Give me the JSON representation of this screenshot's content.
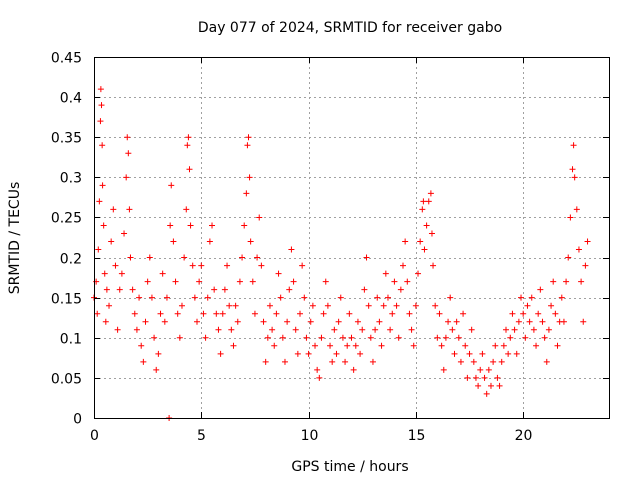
{
  "chart_data": {
    "type": "scatter",
    "title": "Day 077 of 2024, SRMTID for receiver gabo",
    "xlabel": "GPS time / hours",
    "ylabel": "SRMTID / TECUs",
    "xlim": [
      0,
      24
    ],
    "ylim": [
      0,
      0.45
    ],
    "xticks": [
      0,
      5,
      10,
      15,
      20
    ],
    "xtick_labels": [
      "0",
      "5",
      "10",
      "15",
      "20"
    ],
    "yticks": [
      0,
      0.05,
      0.1,
      0.15,
      0.2,
      0.25,
      0.3,
      0.35,
      0.4,
      0.45
    ],
    "ytick_labels": [
      "0",
      "0.05",
      "0.1",
      "0.15",
      "0.2",
      "0.25",
      "0.3",
      "0.35",
      "0.4",
      "0.45"
    ],
    "grid": true,
    "marker": "+",
    "color": "#ff0000",
    "series": [
      {
        "name": "SRMTID",
        "points": [
          [
            0.0,
            0.15
          ],
          [
            0.1,
            0.17
          ],
          [
            0.15,
            0.13
          ],
          [
            0.2,
            0.21
          ],
          [
            0.25,
            0.27
          ],
          [
            0.3,
            0.37
          ],
          [
            0.32,
            0.41
          ],
          [
            0.35,
            0.39
          ],
          [
            0.38,
            0.34
          ],
          [
            0.4,
            0.29
          ],
          [
            0.45,
            0.24
          ],
          [
            0.5,
            0.18
          ],
          [
            0.55,
            0.12
          ],
          [
            0.6,
            0.16
          ],
          [
            0.7,
            0.14
          ],
          [
            0.8,
            0.22
          ],
          [
            0.9,
            0.26
          ],
          [
            1.0,
            0.19
          ],
          [
            1.1,
            0.11
          ],
          [
            1.2,
            0.16
          ],
          [
            1.3,
            0.18
          ],
          [
            1.4,
            0.23
          ],
          [
            1.5,
            0.3
          ],
          [
            1.55,
            0.35
          ],
          [
            1.6,
            0.33
          ],
          [
            1.65,
            0.26
          ],
          [
            1.7,
            0.2
          ],
          [
            1.8,
            0.16
          ],
          [
            1.9,
            0.13
          ],
          [
            2.0,
            0.11
          ],
          [
            2.1,
            0.15
          ],
          [
            2.2,
            0.09
          ],
          [
            2.3,
            0.07
          ],
          [
            2.4,
            0.12
          ],
          [
            2.5,
            0.17
          ],
          [
            2.6,
            0.2
          ],
          [
            2.7,
            0.15
          ],
          [
            2.8,
            0.1
          ],
          [
            2.9,
            0.06
          ],
          [
            3.0,
            0.08
          ],
          [
            3.1,
            0.13
          ],
          [
            3.2,
            0.18
          ],
          [
            3.3,
            0.12
          ],
          [
            3.4,
            0.15
          ],
          [
            3.5,
            0.0
          ],
          [
            3.55,
            0.24
          ],
          [
            3.6,
            0.29
          ],
          [
            3.7,
            0.22
          ],
          [
            3.8,
            0.17
          ],
          [
            3.9,
            0.13
          ],
          [
            4.0,
            0.1
          ],
          [
            4.1,
            0.14
          ],
          [
            4.2,
            0.2
          ],
          [
            4.3,
            0.26
          ],
          [
            4.35,
            0.34
          ],
          [
            4.4,
            0.35
          ],
          [
            4.45,
            0.31
          ],
          [
            4.5,
            0.24
          ],
          [
            4.6,
            0.19
          ],
          [
            4.7,
            0.15
          ],
          [
            4.8,
            0.12
          ],
          [
            4.9,
            0.17
          ],
          [
            5.0,
            0.19
          ],
          [
            5.1,
            0.13
          ],
          [
            5.2,
            0.1
          ],
          [
            5.3,
            0.15
          ],
          [
            5.4,
            0.22
          ],
          [
            5.5,
            0.24
          ],
          [
            5.6,
            0.16
          ],
          [
            5.7,
            0.13
          ],
          [
            5.8,
            0.11
          ],
          [
            5.9,
            0.08
          ],
          [
            6.0,
            0.13
          ],
          [
            6.1,
            0.16
          ],
          [
            6.2,
            0.19
          ],
          [
            6.3,
            0.14
          ],
          [
            6.4,
            0.11
          ],
          [
            6.5,
            0.09
          ],
          [
            6.6,
            0.14
          ],
          [
            6.7,
            0.12
          ],
          [
            6.8,
            0.17
          ],
          [
            6.9,
            0.2
          ],
          [
            7.0,
            0.24
          ],
          [
            7.1,
            0.28
          ],
          [
            7.15,
            0.34
          ],
          [
            7.2,
            0.35
          ],
          [
            7.25,
            0.3
          ],
          [
            7.3,
            0.22
          ],
          [
            7.4,
            0.17
          ],
          [
            7.5,
            0.13
          ],
          [
            7.6,
            0.2
          ],
          [
            7.7,
            0.25
          ],
          [
            7.8,
            0.19
          ],
          [
            7.9,
            0.12
          ],
          [
            8.0,
            0.07
          ],
          [
            8.1,
            0.1
          ],
          [
            8.2,
            0.14
          ],
          [
            8.3,
            0.11
          ],
          [
            8.4,
            0.09
          ],
          [
            8.5,
            0.13
          ],
          [
            8.6,
            0.18
          ],
          [
            8.7,
            0.15
          ],
          [
            8.8,
            0.1
          ],
          [
            8.9,
            0.07
          ],
          [
            9.0,
            0.12
          ],
          [
            9.1,
            0.16
          ],
          [
            9.2,
            0.21
          ],
          [
            9.3,
            0.17
          ],
          [
            9.4,
            0.11
          ],
          [
            9.5,
            0.08
          ],
          [
            9.6,
            0.13
          ],
          [
            9.7,
            0.19
          ],
          [
            9.8,
            0.15
          ],
          [
            9.9,
            0.1
          ],
          [
            10.0,
            0.08
          ],
          [
            10.1,
            0.12
          ],
          [
            10.2,
            0.14
          ],
          [
            10.3,
            0.09
          ],
          [
            10.4,
            0.06
          ],
          [
            10.5,
            0.05
          ],
          [
            10.6,
            0.1
          ],
          [
            10.7,
            0.13
          ],
          [
            10.8,
            0.17
          ],
          [
            10.9,
            0.14
          ],
          [
            11.0,
            0.09
          ],
          [
            11.1,
            0.07
          ],
          [
            11.2,
            0.11
          ],
          [
            11.3,
            0.08
          ],
          [
            11.4,
            0.12
          ],
          [
            11.5,
            0.15
          ],
          [
            11.6,
            0.1
          ],
          [
            11.7,
            0.07
          ],
          [
            11.8,
            0.09
          ],
          [
            11.9,
            0.13
          ],
          [
            12.0,
            0.1
          ],
          [
            12.1,
            0.06
          ],
          [
            12.2,
            0.09
          ],
          [
            12.3,
            0.12
          ],
          [
            12.4,
            0.08
          ],
          [
            12.5,
            0.11
          ],
          [
            12.6,
            0.16
          ],
          [
            12.7,
            0.2
          ],
          [
            12.8,
            0.14
          ],
          [
            12.9,
            0.1
          ],
          [
            13.0,
            0.07
          ],
          [
            13.1,
            0.11
          ],
          [
            13.2,
            0.15
          ],
          [
            13.3,
            0.12
          ],
          [
            13.4,
            0.09
          ],
          [
            13.5,
            0.14
          ],
          [
            13.6,
            0.18
          ],
          [
            13.7,
            0.15
          ],
          [
            13.8,
            0.11
          ],
          [
            13.9,
            0.13
          ],
          [
            14.0,
            0.17
          ],
          [
            14.1,
            0.14
          ],
          [
            14.2,
            0.1
          ],
          [
            14.3,
            0.16
          ],
          [
            14.4,
            0.19
          ],
          [
            14.5,
            0.22
          ],
          [
            14.6,
            0.17
          ],
          [
            14.7,
            0.13
          ],
          [
            14.8,
            0.11
          ],
          [
            14.9,
            0.09
          ],
          [
            15.0,
            0.14
          ],
          [
            15.1,
            0.18
          ],
          [
            15.2,
            0.22
          ],
          [
            15.3,
            0.26
          ],
          [
            15.35,
            0.27
          ],
          [
            15.4,
            0.21
          ],
          [
            15.5,
            0.24
          ],
          [
            15.6,
            0.27
          ],
          [
            15.7,
            0.28
          ],
          [
            15.75,
            0.23
          ],
          [
            15.8,
            0.19
          ],
          [
            15.9,
            0.14
          ],
          [
            16.0,
            0.1
          ],
          [
            16.1,
            0.13
          ],
          [
            16.2,
            0.09
          ],
          [
            16.3,
            0.06
          ],
          [
            16.4,
            0.1
          ],
          [
            16.5,
            0.12
          ],
          [
            16.6,
            0.15
          ],
          [
            16.7,
            0.11
          ],
          [
            16.8,
            0.08
          ],
          [
            16.9,
            0.12
          ],
          [
            17.0,
            0.1
          ],
          [
            17.1,
            0.07
          ],
          [
            17.2,
            0.13
          ],
          [
            17.3,
            0.09
          ],
          [
            17.4,
            0.05
          ],
          [
            17.5,
            0.08
          ],
          [
            17.6,
            0.11
          ],
          [
            17.7,
            0.07
          ],
          [
            17.8,
            0.05
          ],
          [
            17.9,
            0.04
          ],
          [
            18.0,
            0.06
          ],
          [
            18.1,
            0.08
          ],
          [
            18.2,
            0.05
          ],
          [
            18.3,
            0.03
          ],
          [
            18.4,
            0.06
          ],
          [
            18.5,
            0.04
          ],
          [
            18.6,
            0.07
          ],
          [
            18.7,
            0.09
          ],
          [
            18.8,
            0.05
          ],
          [
            18.9,
            0.04
          ],
          [
            19.0,
            0.07
          ],
          [
            19.1,
            0.09
          ],
          [
            19.2,
            0.11
          ],
          [
            19.3,
            0.08
          ],
          [
            19.4,
            0.1
          ],
          [
            19.5,
            0.13
          ],
          [
            19.6,
            0.11
          ],
          [
            19.7,
            0.08
          ],
          [
            19.8,
            0.12
          ],
          [
            19.9,
            0.15
          ],
          [
            20.0,
            0.13
          ],
          [
            20.1,
            0.1
          ],
          [
            20.2,
            0.14
          ],
          [
            20.3,
            0.12
          ],
          [
            20.4,
            0.15
          ],
          [
            20.5,
            0.11
          ],
          [
            20.6,
            0.09
          ],
          [
            20.7,
            0.13
          ],
          [
            20.8,
            0.16
          ],
          [
            20.9,
            0.12
          ],
          [
            21.0,
            0.1
          ],
          [
            21.1,
            0.07
          ],
          [
            21.2,
            0.11
          ],
          [
            21.3,
            0.14
          ],
          [
            21.4,
            0.17
          ],
          [
            21.5,
            0.13
          ],
          [
            21.6,
            0.09
          ],
          [
            21.7,
            0.12
          ],
          [
            21.8,
            0.15
          ],
          [
            21.9,
            0.12
          ],
          [
            22.0,
            0.17
          ],
          [
            22.1,
            0.2
          ],
          [
            22.2,
            0.25
          ],
          [
            22.3,
            0.31
          ],
          [
            22.35,
            0.34
          ],
          [
            22.4,
            0.3
          ],
          [
            22.5,
            0.26
          ],
          [
            22.6,
            0.21
          ],
          [
            22.7,
            0.17
          ],
          [
            22.8,
            0.12
          ],
          [
            22.9,
            0.19
          ],
          [
            23.0,
            0.22
          ]
        ]
      }
    ]
  }
}
